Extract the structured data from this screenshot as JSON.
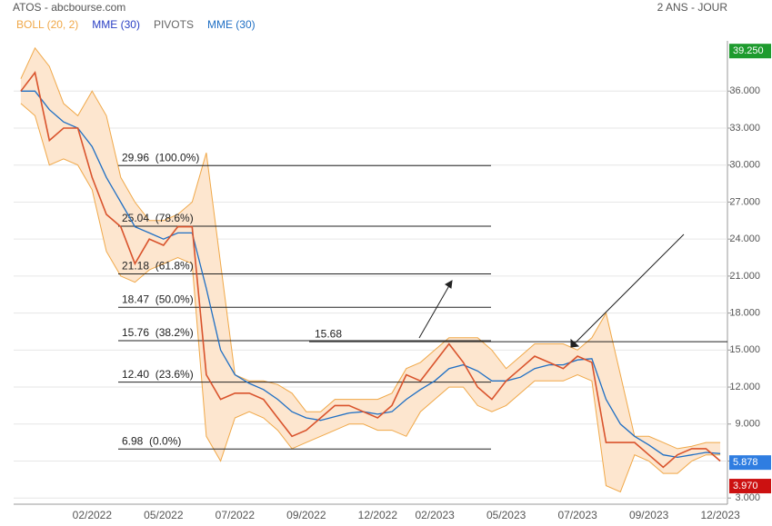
{
  "chart_data": {
    "type": "line",
    "title": "ATOS - abcbourse.com",
    "subtitle": "2 ANS - JOUR",
    "legend": [
      {
        "label": "BOLL (20, 2)",
        "color": "#f0a848"
      },
      {
        "label": "MME (30)",
        "color": "#2a3fc4"
      },
      {
        "label": "PIVOTS",
        "color": "#666666"
      },
      {
        "label": "MME (30)",
        "color": "#1f6fc4"
      }
    ],
    "categories": [
      null,
      null,
      null,
      null,
      null,
      "02/2022",
      null,
      null,
      null,
      null,
      "05/2022",
      null,
      null,
      null,
      null,
      "07/2022",
      null,
      null,
      null,
      null,
      "09/2022",
      null,
      null,
      null,
      null,
      "12/2022",
      null,
      null,
      null,
      "02/2023",
      null,
      null,
      null,
      null,
      "05/2023",
      null,
      null,
      null,
      null,
      "07/2023",
      null,
      null,
      null,
      null,
      "09/2023",
      null,
      null,
      null,
      null,
      "12/2023"
    ],
    "price": {
      "color": "#d9532c",
      "values": [
        36,
        37.5,
        32,
        33,
        33,
        29,
        26,
        25,
        22,
        24,
        23.5,
        25,
        25,
        13,
        11,
        11.5,
        11.5,
        11,
        9.5,
        8,
        8.5,
        9.5,
        10.5,
        10.5,
        10,
        9.5,
        10.5,
        13,
        12.5,
        14,
        15.5,
        14,
        12,
        11,
        12.5,
        13.5,
        14.5,
        14,
        13.5,
        14.5,
        14,
        7.5,
        7.5,
        7.5,
        6.5,
        5.5,
        6.5,
        7,
        7,
        6
      ]
    },
    "mme": {
      "color": "#1f6fc4",
      "values": [
        36,
        36,
        34.5,
        33.5,
        33,
        31.5,
        29,
        27,
        25,
        24.5,
        24,
        24.5,
        24.5,
        20,
        15,
        13,
        12.3,
        11.8,
        11,
        10,
        9.5,
        9.3,
        9.6,
        9.9,
        10,
        9.8,
        10,
        11,
        11.8,
        12.5,
        13.5,
        13.8,
        13.3,
        12.5,
        12.5,
        12.8,
        13.5,
        13.8,
        13.8,
        14.2,
        14.3,
        11,
        9,
        8,
        7.3,
        6.5,
        6.3,
        6.5,
        6.7,
        6.6
      ]
    },
    "bollinger": {
      "color": "#f0a848",
      "fill": "#fde6cf",
      "upper": [
        37,
        39.5,
        38,
        35,
        34,
        36,
        34,
        29,
        27,
        25.5,
        25.5,
        26,
        27,
        31,
        22,
        13,
        12.5,
        12.5,
        12.2,
        11.5,
        10,
        10,
        11,
        11,
        11,
        11,
        11.5,
        13.5,
        14,
        15,
        16,
        16,
        16,
        15,
        13.5,
        14.5,
        15.5,
        15.5,
        15.5,
        15,
        16,
        18,
        13,
        8,
        8,
        7.5,
        7,
        7.2,
        7.5,
        7.5
      ],
      "lower": [
        35,
        34,
        30,
        30.5,
        30,
        28,
        23,
        21,
        20.5,
        21.5,
        22,
        22.5,
        22,
        8,
        6,
        9.5,
        10,
        9.5,
        8.5,
        7,
        7.5,
        8,
        8.5,
        9,
        9,
        8.5,
        8.5,
        8,
        10,
        11,
        12,
        12,
        10.5,
        10,
        10.5,
        11.5,
        12.5,
        12.5,
        12.5,
        13,
        12.5,
        4,
        3.5,
        6.5,
        6,
        5,
        5,
        6,
        6.5,
        6.5
      ]
    },
    "fibonacci": [
      {
        "value": 29.96,
        "label": "29.96  (100.0%)"
      },
      {
        "value": 25.04,
        "label": "25.04  (78.6%)"
      },
      {
        "value": 21.18,
        "label": "21.18  (61.8%)"
      },
      {
        "value": 18.47,
        "label": "18.47  (50.0%)"
      },
      {
        "value": 15.76,
        "label": "15.76  (38.2%)"
      },
      {
        "value": 12.4,
        "label": "12.40  (23.6%)"
      },
      {
        "value": 6.98,
        "label": "6.98  (0.0%)"
      }
    ],
    "pivot": {
      "value": 15.68,
      "label": "15.68"
    },
    "price_tags": [
      {
        "value": 39.25,
        "label": "39.250",
        "color": "#1e9b2e"
      },
      {
        "value": 5.878,
        "label": "5.878",
        "color": "#2f7de1"
      },
      {
        "value": 3.97,
        "label": "3.970",
        "color": "#cc1111"
      }
    ],
    "ylim": [
      2.5,
      40
    ],
    "yticks": [
      {
        "value": 36,
        "label": "36.000"
      },
      {
        "value": 33,
        "label": "33.000"
      },
      {
        "value": 30,
        "label": "30.000"
      },
      {
        "value": 27,
        "label": "27.000"
      },
      {
        "value": 24,
        "label": "24.000"
      },
      {
        "value": 21,
        "label": "21.000"
      },
      {
        "value": 18,
        "label": "18.000"
      },
      {
        "value": 15,
        "label": "15.000"
      },
      {
        "value": 12,
        "label": "12.000"
      },
      {
        "value": 9,
        "label": "9.000"
      },
      {
        "value": 6,
        "label": "6.000"
      },
      {
        "value": 3,
        "label": "3.000"
      }
    ],
    "grid": true
  }
}
